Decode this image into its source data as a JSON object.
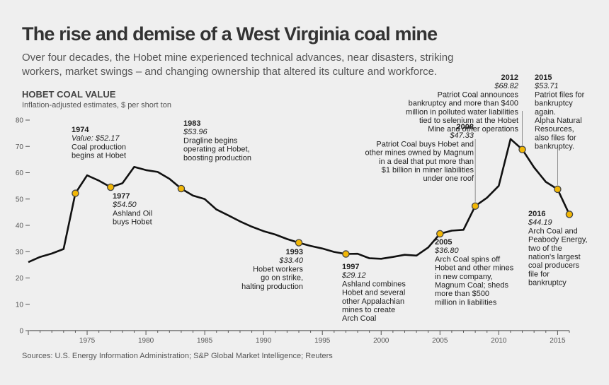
{
  "title": "The rise and demise of a West Virginia coal mine",
  "subtitle": "Over four decades, the Hobet mine experienced technical advances, near disasters, striking workers, market swings – and changing ownership that altered its culture and workforce.",
  "source": "Sources: U.S. Energy Information Administration; S&P Global Market Intelligence; Reuters",
  "colors": {
    "background": "#efefef",
    "line": "#111111",
    "marker_fill": "#f2b705",
    "marker_stroke": "#444444"
  },
  "chart_data": {
    "type": "line",
    "title": "HOBET COAL VALUE",
    "ylabel": "Inflation-adjusted estimates, $ per short ton",
    "xlabel": "",
    "xlim": [
      1970,
      2016
    ],
    "ylim": [
      0,
      80
    ],
    "x_ticks": [
      1975,
      1980,
      1985,
      1990,
      1995,
      2000,
      2005,
      2010,
      2015
    ],
    "y_ticks": [
      0,
      10,
      20,
      30,
      40,
      50,
      60,
      70,
      80
    ],
    "grid": false,
    "series": [
      {
        "x": [
          1970,
          1971,
          1972,
          1973,
          1974,
          1975,
          1976,
          1977,
          1978,
          1979,
          1980,
          1981,
          1982,
          1983,
          1984,
          1985,
          1986,
          1987,
          1988,
          1989,
          1990,
          1991,
          1992,
          1993,
          1994,
          1995,
          1996,
          1997,
          1998,
          1999,
          2000,
          2001,
          2002,
          2003,
          2004,
          2005,
          2006,
          2007,
          2008,
          2009,
          2010,
          2011,
          2012,
          2013,
          2014,
          2015,
          2016
        ],
        "values": [
          26.0,
          28.0,
          29.3,
          31.0,
          52.17,
          59.0,
          57.0,
          54.5,
          56.0,
          62.2,
          61.0,
          60.3,
          57.7,
          53.96,
          51.3,
          50.0,
          46.0,
          43.8,
          41.5,
          39.5,
          37.8,
          36.5,
          34.8,
          33.4,
          32.2,
          31.2,
          29.9,
          29.12,
          29.2,
          27.5,
          27.3,
          28.0,
          28.8,
          28.5,
          31.6,
          36.8,
          38.0,
          38.3,
          47.33,
          50.5,
          55.0,
          72.8,
          68.82,
          62.0,
          56.5,
          53.71,
          44.19
        ]
      }
    ],
    "annotations": [
      {
        "year": "1974",
        "value": "Value: $52.17",
        "text": [
          "Coal production",
          "begins at Hobet"
        ],
        "x": 1974,
        "y": 52.17
      },
      {
        "year": "1977",
        "value": "$54.50",
        "text": [
          "Ashland Oil",
          "buys Hobet"
        ],
        "x": 1977,
        "y": 54.5
      },
      {
        "year": "1983",
        "value": "$53.96",
        "text": [
          "Dragline begins",
          "operating at Hobet,",
          "boosting production"
        ],
        "x": 1983,
        "y": 53.96
      },
      {
        "year": "1993",
        "value": "$33.40",
        "text": [
          "Hobet workers",
          "go on strike,",
          "halting production"
        ],
        "x": 1993,
        "y": 33.4
      },
      {
        "year": "1997",
        "value": "$29.12",
        "text": [
          "Ashland combines",
          "Hobet and several",
          "other Appalachian",
          "mines to create",
          "Arch Coal"
        ],
        "x": 1997,
        "y": 29.12
      },
      {
        "year": "2005",
        "value": "$36.80",
        "text": [
          "Arch Coal spins off",
          "Hobet and other mines",
          "in new company,",
          "Magnum Coal; sheds",
          "more than $500",
          "million in liabilities"
        ],
        "x": 2005,
        "y": 36.8
      },
      {
        "year": "2008",
        "value": "$47.33",
        "text": [
          "Patriot Coal buys Hobet and",
          "other mines owned by Magnum",
          "in a deal that put more than",
          "$1 billion in miner liabilities",
          "under one roof"
        ],
        "x": 2008,
        "y": 47.33
      },
      {
        "year": "2012",
        "value": "$68.82",
        "text": [
          "Patriot Coal announces",
          "bankruptcy and more than $400",
          "million in polluted water liabilities",
          "tied to selenium at the Hobet",
          "Mine and other operations"
        ],
        "x": 2012,
        "y": 68.82
      },
      {
        "year": "2015",
        "value": "$53.71",
        "text": [
          "Patriot files for",
          "bankruptcy",
          "again.",
          "Alpha Natural",
          "Resources,",
          "also files for",
          "bankruptcy."
        ],
        "x": 2015,
        "y": 53.71
      },
      {
        "year": "2016",
        "value": "$44.19",
        "text": [
          "Arch Coal and",
          "Peabody Energy,",
          "two of the",
          "nation's largest",
          "coal producers",
          "file for",
          "bankruptcy"
        ],
        "x": 2016,
        "y": 44.19
      }
    ]
  }
}
